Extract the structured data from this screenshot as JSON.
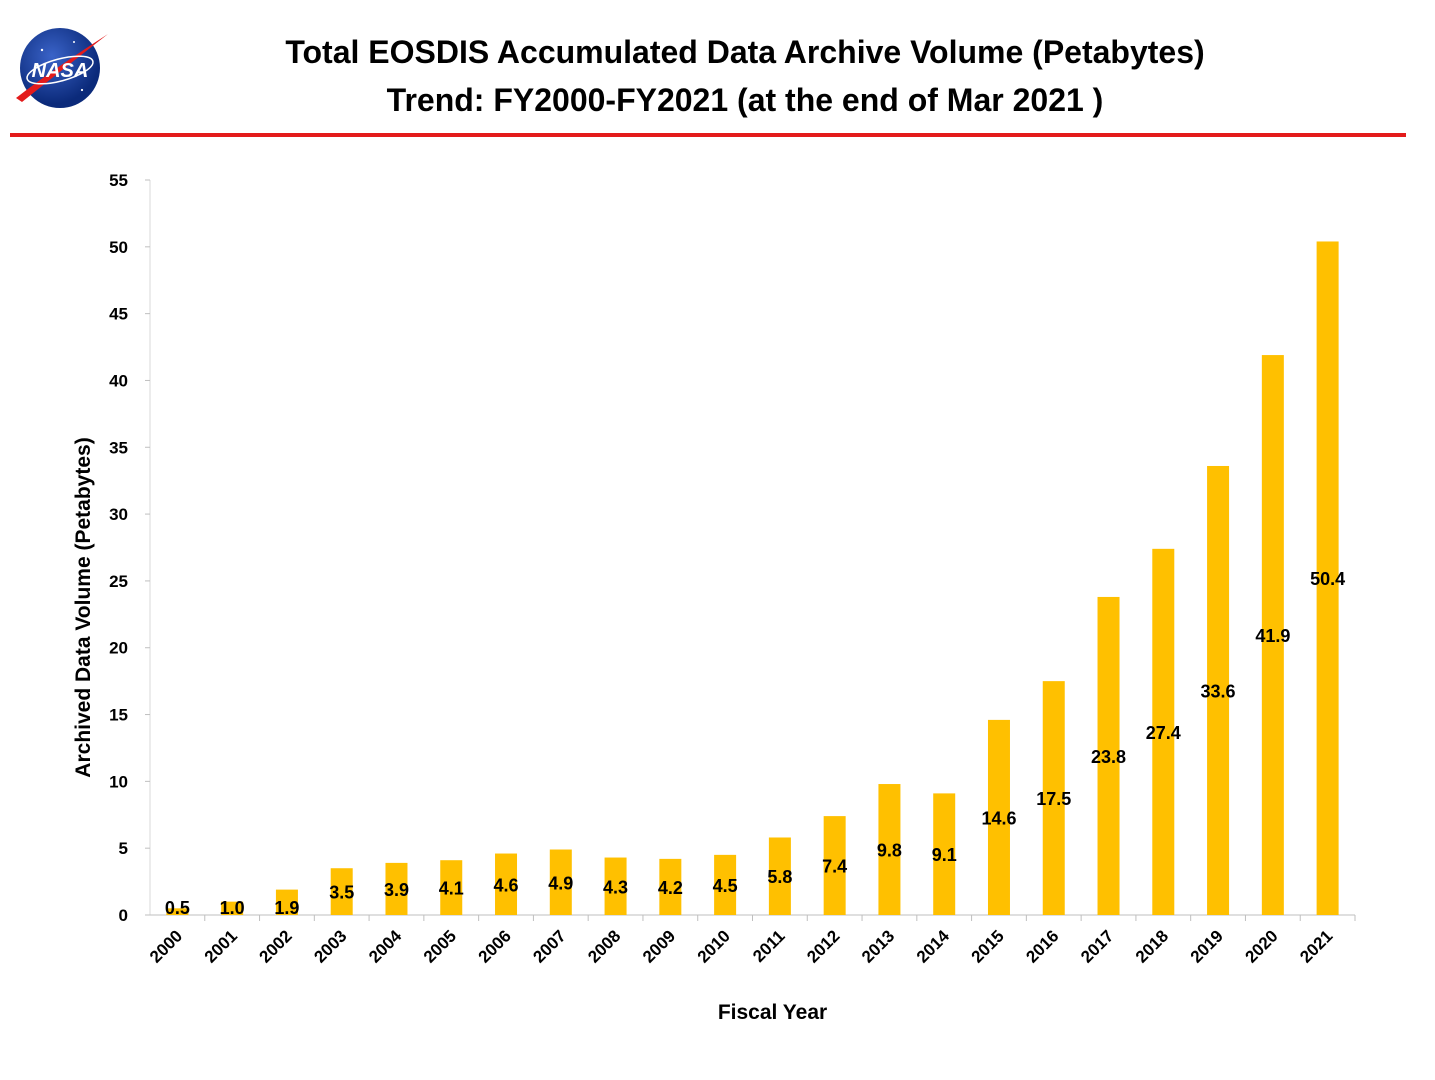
{
  "header": {
    "title_line1": "Total EOSDIS Accumulated Data Archive Volume (Petabytes)",
    "title_line2": "Trend: FY2000-FY2021 (at the end of Mar 2021 )",
    "logo_text": "NASA",
    "divider_color": "#e31b1b"
  },
  "chart_data": {
    "type": "bar",
    "categories": [
      "2000",
      "2001",
      "2002",
      "2003",
      "2004",
      "2005",
      "2006",
      "2007",
      "2008",
      "2009",
      "2010",
      "2011",
      "2012",
      "2013",
      "2014",
      "2015",
      "2016",
      "2017",
      "2018",
      "2019",
      "2020",
      "2021"
    ],
    "values": [
      0.5,
      1.0,
      1.9,
      3.5,
      3.9,
      4.1,
      4.6,
      4.9,
      4.3,
      4.2,
      4.5,
      5.8,
      7.4,
      9.8,
      9.1,
      14.6,
      17.5,
      23.8,
      27.4,
      33.6,
      41.9,
      50.4
    ],
    "data_labels": [
      "0.5",
      "1.0",
      "1.9",
      "3.5",
      "3.9",
      "4.1",
      "4.6",
      "4.9",
      "4.3",
      "4.2",
      "4.5",
      "5.8",
      "7.4",
      "9.8",
      "9.1",
      "14.6",
      "17.5",
      "23.8",
      "27.4",
      "33.6",
      "41.9",
      "50.4"
    ],
    "xlabel": "Fiscal Year",
    "ylabel": "Archived Data Volume (Petabytes)",
    "ylim": [
      0,
      55
    ],
    "yticks": [
      0,
      5,
      10,
      15,
      20,
      25,
      30,
      35,
      40,
      45,
      50,
      55
    ],
    "grid": false,
    "legend": "none",
    "bar_color": "#ffc000"
  }
}
